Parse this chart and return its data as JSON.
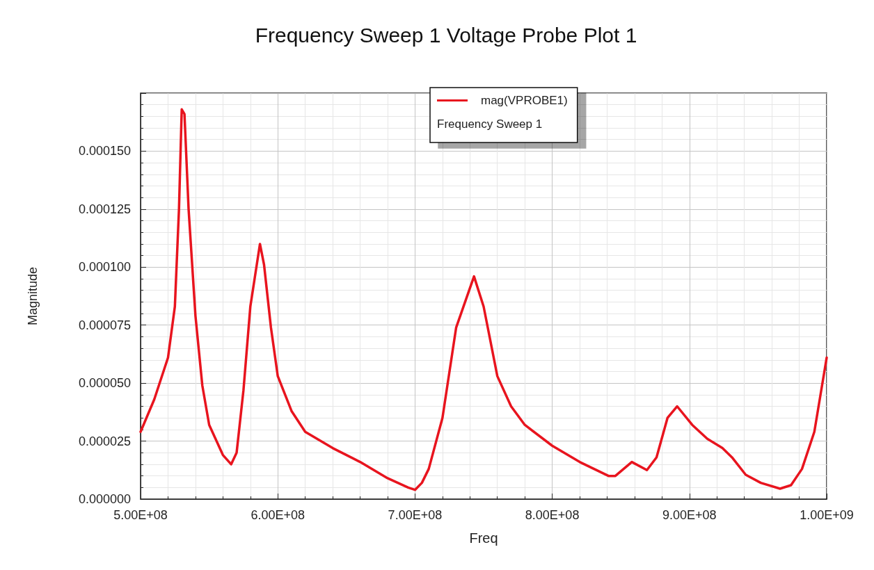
{
  "chart_data": {
    "type": "line",
    "title": "Frequency Sweep 1 Voltage Probe Plot 1",
    "xlabel": "Freq",
    "ylabel": "Magnitude",
    "legend_title": "Frequency Sweep 1",
    "x": [
      500000000,
      510000000,
      520000000,
      525000000,
      528000000,
      530000000,
      532000000,
      535000000,
      540000000,
      545000000,
      550000000,
      560000000,
      566000000,
      570000000,
      575000000,
      580000000,
      587000000,
      590000000,
      595000000,
      600000000,
      610000000,
      620000000,
      640000000,
      660000000,
      680000000,
      695000000,
      700000000,
      705000000,
      710000000,
      720000000,
      730000000,
      743000000,
      750000000,
      760000000,
      770000000,
      780000000,
      800000000,
      820000000,
      841000000,
      846000000,
      858000000,
      869000000,
      876000000,
      884000000,
      891000000,
      902000000,
      913000000,
      924000000,
      931000000,
      941000000,
      952000000,
      966000000,
      974000000,
      982000000,
      991000000,
      1000000000
    ],
    "series": [
      {
        "name": "mag(VPROBE1)",
        "color": "#e8141e",
        "values": [
          2.9e-05,
          4.3e-05,
          6.1e-05,
          8.3e-05,
          0.000125,
          0.000168,
          0.000166,
          0.000125,
          7.9e-05,
          4.9e-05,
          3.2e-05,
          1.9e-05,
          1.5e-05,
          2e-05,
          4.7e-05,
          8.3e-05,
          0.00011,
          0.000101,
          7.4e-05,
          5.3e-05,
          3.8e-05,
          2.9e-05,
          2.2e-05,
          1.6e-05,
          9e-06,
          5e-06,
          4e-06,
          7e-06,
          1.3e-05,
          3.5e-05,
          7.4e-05,
          9.6e-05,
          8.3e-05,
          5.3e-05,
          4e-05,
          3.2e-05,
          2.3e-05,
          1.6e-05,
          1e-05,
          1e-05,
          1.6e-05,
          1.25e-05,
          1.8e-05,
          3.5e-05,
          4e-05,
          3.2e-05,
          2.6e-05,
          2.2e-05,
          1.8e-05,
          1.05e-05,
          7e-06,
          4.5e-06,
          6e-06,
          1.3e-05,
          2.9e-05,
          6.1e-05
        ]
      }
    ],
    "xlim": [
      500000000,
      1000000000
    ],
    "xticks": [
      {
        "value": 500000000,
        "label": "5.00E+08"
      },
      {
        "value": 600000000,
        "label": "6.00E+08"
      },
      {
        "value": 700000000,
        "label": "7.00E+08"
      },
      {
        "value": 800000000,
        "label": "8.00E+08"
      },
      {
        "value": 900000000,
        "label": "9.00E+08"
      },
      {
        "value": 1000000000,
        "label": "1.00E+09"
      }
    ],
    "ylim": [
      0,
      0.000175
    ],
    "yticks": [
      {
        "value": 0,
        "label": "0.000000"
      },
      {
        "value": 2.5e-05,
        "label": "0.000025"
      },
      {
        "value": 5e-05,
        "label": "0.000050"
      },
      {
        "value": 7.5e-05,
        "label": "0.000075"
      },
      {
        "value": 0.0001,
        "label": "0.000100"
      },
      {
        "value": 0.000125,
        "label": "0.000125"
      },
      {
        "value": 0.00015,
        "label": "0.000150"
      }
    ],
    "grid": true,
    "legend": "top",
    "marker": "none",
    "line_style": "solid"
  }
}
